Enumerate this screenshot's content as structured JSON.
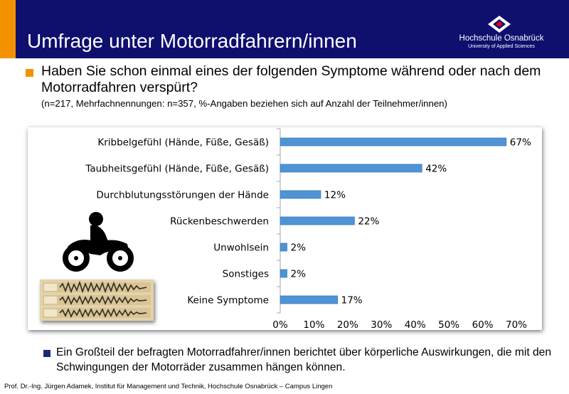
{
  "header": {
    "title": "Umfrage unter Motorradfahrern/innen",
    "logo_name": "Hochschule Osnabrück",
    "logo_sub": "University of Applied Sciences",
    "bg_color": "#0f0f6e",
    "accent_color": "#f29200"
  },
  "question": {
    "text": "Haben Sie schon einmal eines der folgenden Symptome während oder nach dem Motorradfahren verspürt?",
    "note": "(n=217, Mehrfachnennungen: n=357, %-Angaben beziehen sich auf Anzahl der Teilnehmer/innen)"
  },
  "chart_data": {
    "type": "bar",
    "orientation": "horizontal",
    "categories": [
      "Kribbelgefühl (Hände, Füße, Gesäß)",
      "Taubheitsgefühl (Hände, Füße, Gesäß)",
      "Durchblutungsstörungen der Hände",
      "Rückenbeschwerden",
      "Unwohlsein",
      "Sonstiges",
      "Keine Symptome"
    ],
    "values": [
      67,
      42,
      12,
      22,
      2,
      2,
      17
    ],
    "value_labels": [
      "67%",
      "42%",
      "12%",
      "22%",
      "2%",
      "2%",
      "17%"
    ],
    "xlim": [
      0,
      70
    ],
    "xticks": [
      "0%",
      "10%",
      "20%",
      "30%",
      "40%",
      "50%",
      "60%",
      "70%"
    ],
    "grid": false,
    "bar_color": "#4f93d5"
  },
  "conclusion": "Ein Großteil der befragten Motorradfahrer/innen berichtet über körperliche Auswirkungen, die mit den Schwingungen der Motorräder zusammen hängen können.",
  "footer": "Prof. Dr.-Ing. Jürgen Adamek, Institut für Management und Technik, Hochschule Osnabrück – Campus Lingen",
  "icons": [
    "motorcycle-icon",
    "waveform-image",
    "hochschule-logo"
  ]
}
